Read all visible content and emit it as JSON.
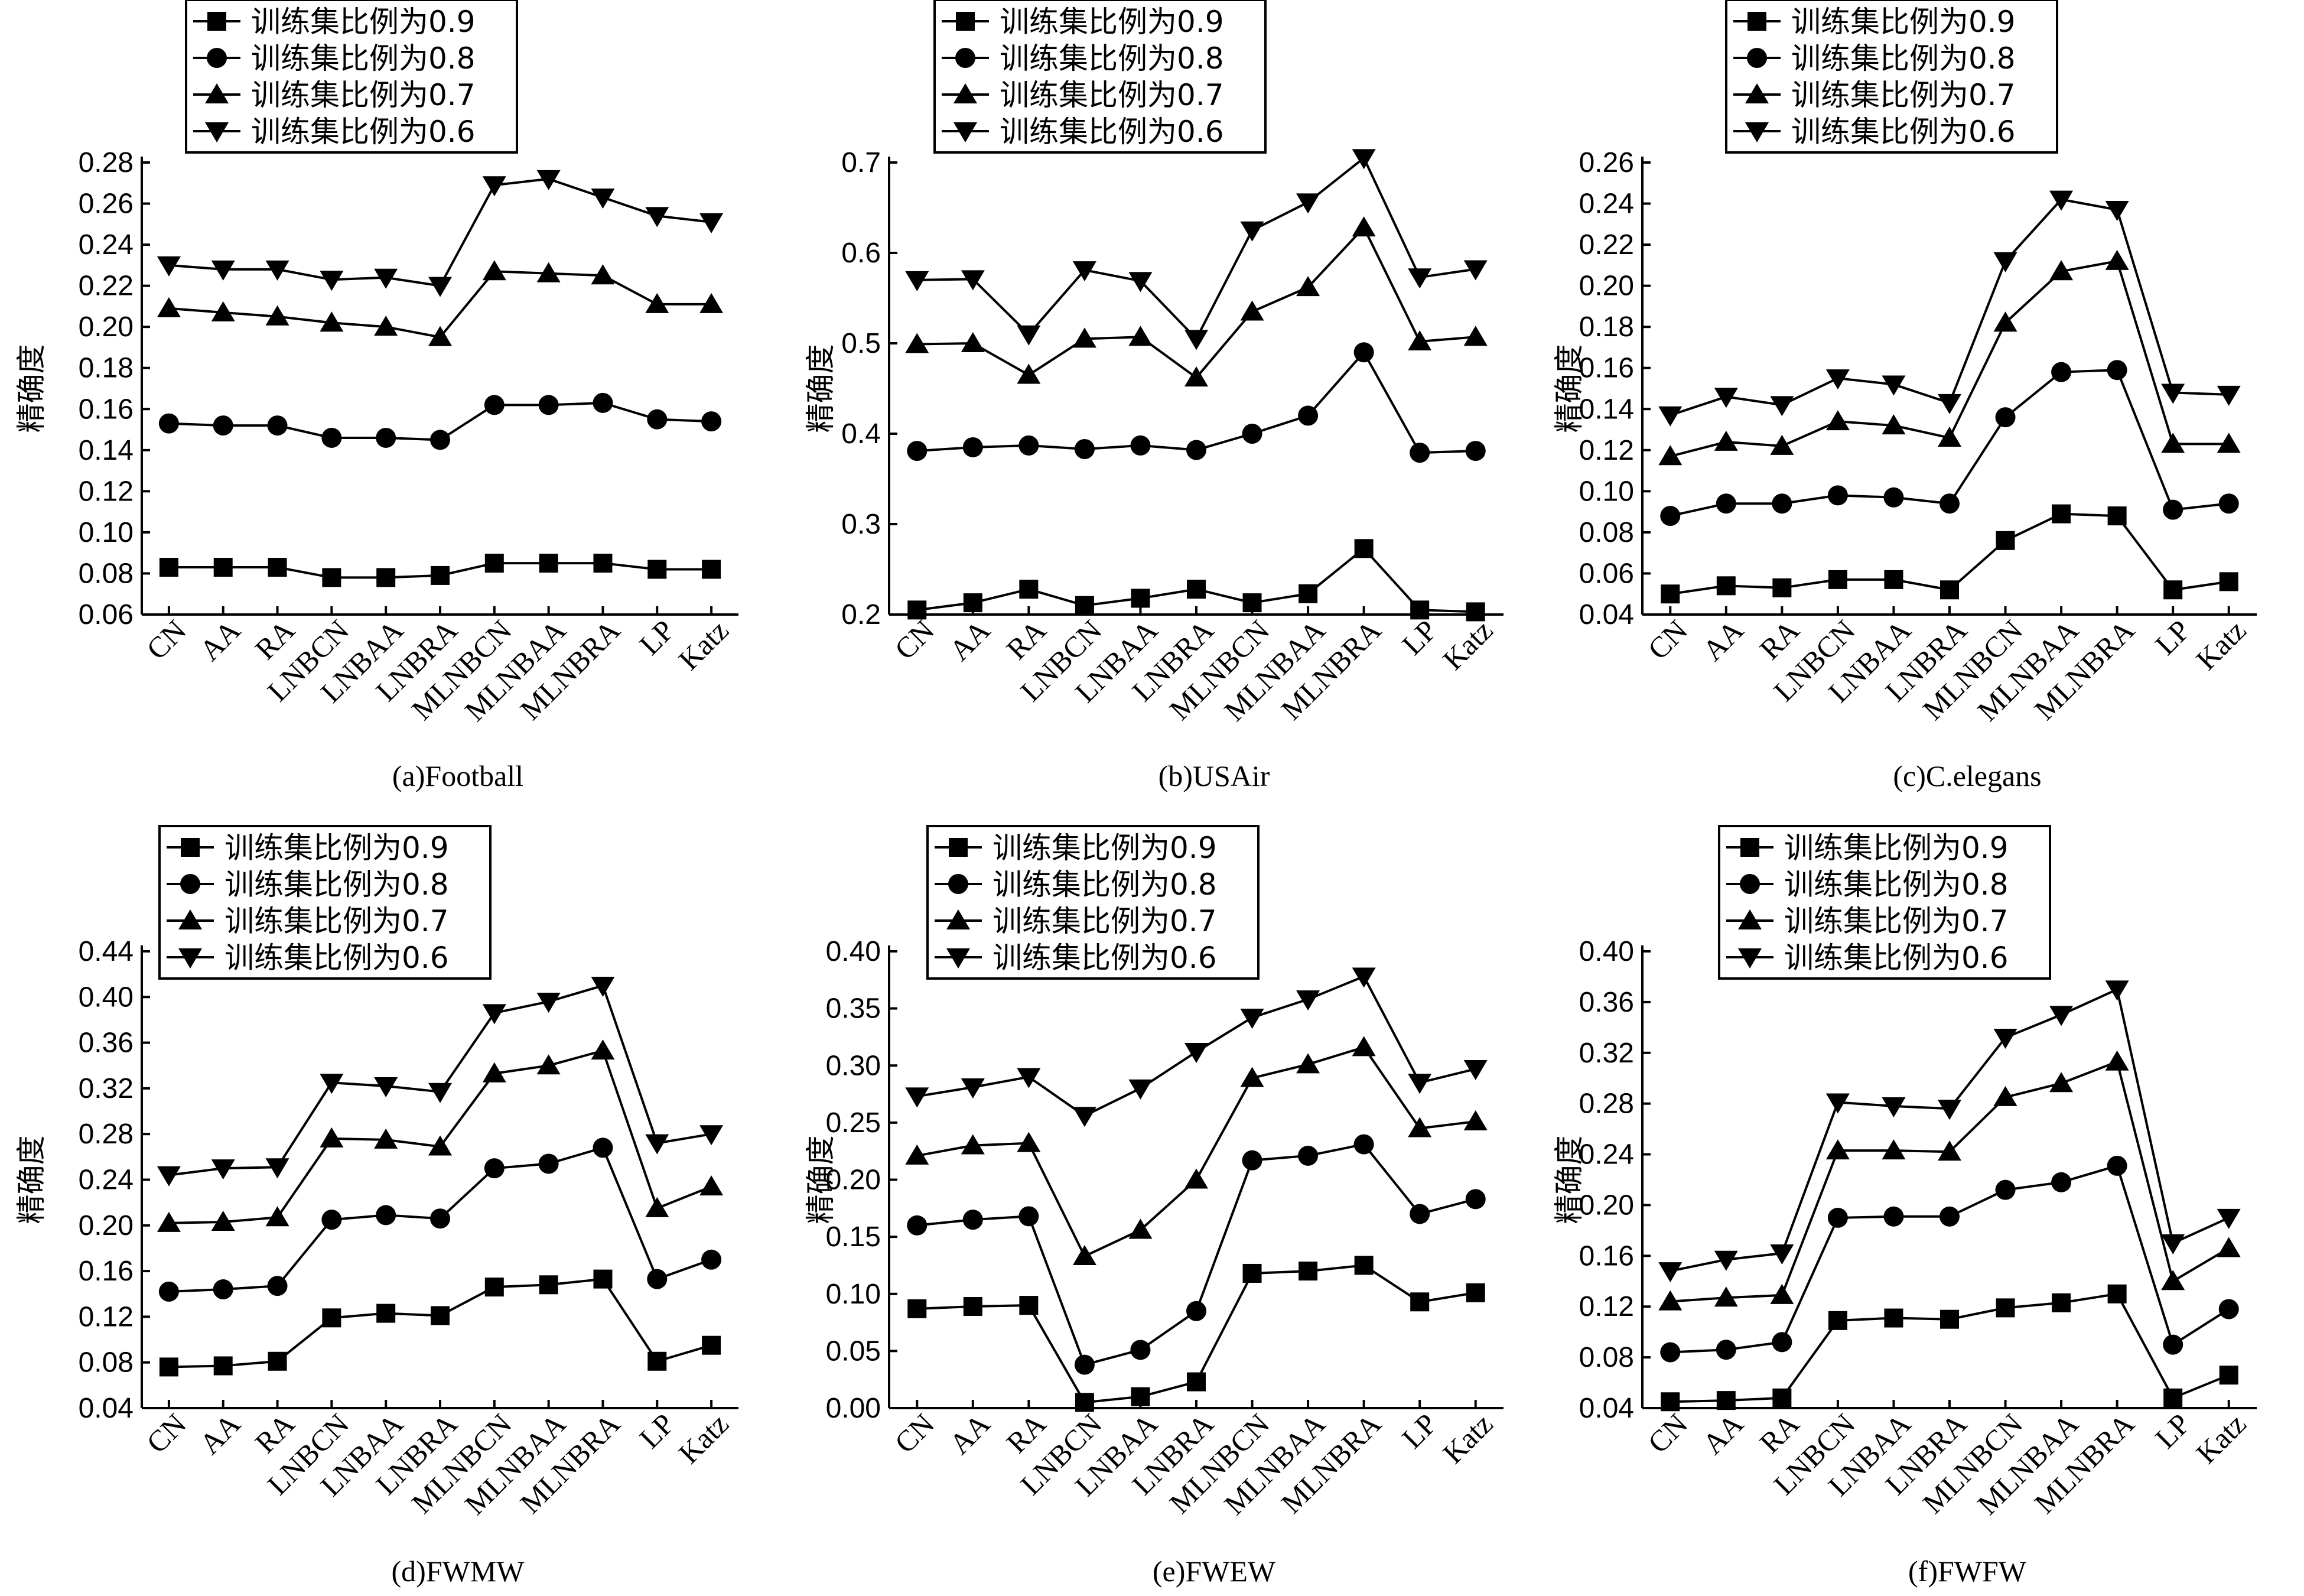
{
  "chart_data": [
    {
      "type": "line",
      "caption": "(a)Football",
      "ylabel": "精确度",
      "categories": [
        "CN",
        "AA",
        "RA",
        "LNBCN",
        "LNBAA",
        "LNBRA",
        "MLNBCN",
        "MLNBAA",
        "MLNBRA",
        "LP",
        "Katz"
      ],
      "ylim": [
        0.06,
        0.28
      ],
      "yticks": [
        "0.06",
        "0.08",
        "0.10",
        "0.12",
        "0.14",
        "0.16",
        "0.18",
        "0.20",
        "0.22",
        "0.24",
        "0.26",
        "0.28"
      ],
      "series": [
        {
          "name": "训练集比例为0.9",
          "marker": "square",
          "values": [
            0.083,
            0.083,
            0.083,
            0.078,
            0.078,
            0.079,
            0.085,
            0.085,
            0.085,
            0.082,
            0.082
          ]
        },
        {
          "name": "训练集比例为0.8",
          "marker": "circle",
          "values": [
            0.153,
            0.152,
            0.152,
            0.146,
            0.146,
            0.145,
            0.162,
            0.162,
            0.163,
            0.155,
            0.154
          ]
        },
        {
          "name": "训练集比例为0.7",
          "marker": "triangle-up",
          "values": [
            0.209,
            0.207,
            0.205,
            0.202,
            0.2,
            0.195,
            0.227,
            0.226,
            0.225,
            0.211,
            0.211
          ]
        },
        {
          "name": "训练集比例为0.6",
          "marker": "triangle-down",
          "values": [
            0.23,
            0.228,
            0.228,
            0.223,
            0.224,
            0.22,
            0.269,
            0.272,
            0.263,
            0.254,
            0.251
          ]
        }
      ]
    },
    {
      "type": "line",
      "caption": "(b)USAir",
      "ylabel": "精确度",
      "categories": [
        "CN",
        "AA",
        "RA",
        "LNBCN",
        "LNBAA",
        "LNBRA",
        "MLNBCN",
        "MLNBAA",
        "MLNBRA",
        "LP",
        "Katz"
      ],
      "ylim": [
        0.2,
        0.7
      ],
      "yticks": [
        "0.2",
        "0.3",
        "0.4",
        "0.5",
        "0.6",
        "0.7"
      ],
      "series": [
        {
          "name": "训练集比例为0.9",
          "marker": "square",
          "values": [
            0.205,
            0.213,
            0.228,
            0.21,
            0.218,
            0.228,
            0.213,
            0.223,
            0.273,
            0.205,
            0.203
          ]
        },
        {
          "name": "训练集比例为0.8",
          "marker": "circle",
          "values": [
            0.381,
            0.385,
            0.387,
            0.383,
            0.387,
            0.382,
            0.4,
            0.42,
            0.49,
            0.379,
            0.381
          ]
        },
        {
          "name": "训练集比例为0.7",
          "marker": "triangle-up",
          "values": [
            0.499,
            0.5,
            0.465,
            0.505,
            0.507,
            0.462,
            0.535,
            0.562,
            0.628,
            0.502,
            0.507
          ]
        },
        {
          "name": "训练集比例为0.6",
          "marker": "triangle-down",
          "values": [
            0.57,
            0.571,
            0.51,
            0.581,
            0.569,
            0.505,
            0.625,
            0.656,
            0.705,
            0.573,
            0.582
          ]
        }
      ]
    },
    {
      "type": "line",
      "caption": "(c)C.elegans",
      "ylabel": "精确度",
      "categories": [
        "CN",
        "AA",
        "RA",
        "LNBCN",
        "LNBAA",
        "LNBRA",
        "MLNBCN",
        "MLNBAA",
        "MLNBRA",
        "LP",
        "Katz"
      ],
      "ylim": [
        0.04,
        0.26
      ],
      "yticks": [
        "0.04",
        "0.06",
        "0.08",
        "0.10",
        "0.12",
        "0.14",
        "0.16",
        "0.18",
        "0.20",
        "0.22",
        "0.24",
        "0.26"
      ],
      "series": [
        {
          "name": "训练集比例为0.9",
          "marker": "square",
          "values": [
            0.05,
            0.054,
            0.053,
            0.057,
            0.057,
            0.052,
            0.076,
            0.089,
            0.088,
            0.052,
            0.056
          ]
        },
        {
          "name": "训练集比例为0.8",
          "marker": "circle",
          "values": [
            0.088,
            0.094,
            0.094,
            0.098,
            0.097,
            0.094,
            0.136,
            0.158,
            0.159,
            0.091,
            0.094
          ]
        },
        {
          "name": "训练集比例为0.7",
          "marker": "triangle-up",
          "values": [
            0.117,
            0.124,
            0.122,
            0.134,
            0.132,
            0.126,
            0.182,
            0.207,
            0.212,
            0.123,
            0.123
          ]
        },
        {
          "name": "训练集比例为0.6",
          "marker": "triangle-down",
          "values": [
            0.137,
            0.146,
            0.142,
            0.155,
            0.152,
            0.143,
            0.212,
            0.242,
            0.237,
            0.148,
            0.147
          ]
        }
      ]
    },
    {
      "type": "line",
      "caption": "(d)FWMW",
      "ylabel": "精确度",
      "categories": [
        "CN",
        "AA",
        "RA",
        "LNBCN",
        "LNBAA",
        "LNBRA",
        "MLNBCN",
        "MLNBAA",
        "MLNBRA",
        "LP",
        "Katz"
      ],
      "ylim": [
        0.04,
        0.44
      ],
      "yticks": [
        "0.04",
        "0.08",
        "0.12",
        "0.16",
        "0.20",
        "0.24",
        "0.28",
        "0.32",
        "0.36",
        "0.40",
        "0.44"
      ],
      "series": [
        {
          "name": "训练集比例为0.9",
          "marker": "square",
          "values": [
            0.076,
            0.077,
            0.081,
            0.119,
            0.123,
            0.121,
            0.146,
            0.148,
            0.153,
            0.081,
            0.095
          ]
        },
        {
          "name": "训练集比例为0.8",
          "marker": "circle",
          "values": [
            0.142,
            0.144,
            0.147,
            0.205,
            0.209,
            0.206,
            0.25,
            0.254,
            0.268,
            0.153,
            0.17
          ]
        },
        {
          "name": "训练集比例为0.7",
          "marker": "triangle-up",
          "values": [
            0.202,
            0.203,
            0.207,
            0.276,
            0.275,
            0.269,
            0.333,
            0.34,
            0.353,
            0.215,
            0.234
          ]
        },
        {
          "name": "训练集比例为0.6",
          "marker": "triangle-down",
          "values": [
            0.244,
            0.25,
            0.251,
            0.325,
            0.322,
            0.317,
            0.386,
            0.396,
            0.41,
            0.272,
            0.28
          ]
        }
      ]
    },
    {
      "type": "line",
      "caption": "(e)FWEW",
      "ylabel": "精确度",
      "categories": [
        "CN",
        "AA",
        "RA",
        "LNBCN",
        "LNBAA",
        "LNBRA",
        "MLNBCN",
        "MLNBAA",
        "MLNBRA",
        "LP",
        "Katz"
      ],
      "ylim": [
        0.0,
        0.4
      ],
      "yticks": [
        "0.00",
        "0.05",
        "0.10",
        "0.15",
        "0.20",
        "0.25",
        "0.30",
        "0.35",
        "0.40"
      ],
      "series": [
        {
          "name": "训练集比例为0.9",
          "marker": "square",
          "values": [
            0.087,
            0.089,
            0.09,
            0.005,
            0.01,
            0.023,
            0.118,
            0.12,
            0.125,
            0.093,
            0.101
          ]
        },
        {
          "name": "训练集比例为0.8",
          "marker": "circle",
          "values": [
            0.16,
            0.165,
            0.168,
            0.038,
            0.051,
            0.085,
            0.217,
            0.221,
            0.231,
            0.17,
            0.183
          ]
        },
        {
          "name": "训练集比例为0.7",
          "marker": "triangle-up",
          "values": [
            0.221,
            0.23,
            0.232,
            0.133,
            0.156,
            0.2,
            0.289,
            0.301,
            0.316,
            0.245,
            0.251
          ]
        },
        {
          "name": "训练集比例为0.6",
          "marker": "triangle-down",
          "values": [
            0.273,
            0.281,
            0.29,
            0.256,
            0.28,
            0.312,
            0.342,
            0.358,
            0.378,
            0.285,
            0.297
          ]
        }
      ]
    },
    {
      "type": "line",
      "caption": "(f)FWFW",
      "ylabel": "精确度",
      "categories": [
        "CN",
        "AA",
        "RA",
        "LNBCN",
        "LNBAA",
        "LNBRA",
        "MLNBCN",
        "MLNBAA",
        "MLNBRA",
        "LP",
        "Katz"
      ],
      "ylim": [
        0.04,
        0.4
      ],
      "yticks": [
        "0.04",
        "0.08",
        "0.12",
        "0.16",
        "0.20",
        "0.24",
        "0.28",
        "0.32",
        "0.36",
        "0.40"
      ],
      "series": [
        {
          "name": "训练集比例为0.9",
          "marker": "square",
          "values": [
            0.045,
            0.046,
            0.048,
            0.109,
            0.111,
            0.11,
            0.119,
            0.123,
            0.13,
            0.048,
            0.066
          ]
        },
        {
          "name": "训练集比例为0.8",
          "marker": "circle",
          "values": [
            0.084,
            0.086,
            0.092,
            0.19,
            0.191,
            0.191,
            0.212,
            0.218,
            0.231,
            0.09,
            0.118
          ]
        },
        {
          "name": "训练集比例为0.7",
          "marker": "triangle-up",
          "values": [
            0.124,
            0.127,
            0.129,
            0.243,
            0.243,
            0.242,
            0.285,
            0.296,
            0.313,
            0.14,
            0.166
          ]
        },
        {
          "name": "训练集比例为0.6",
          "marker": "triangle-down",
          "values": [
            0.148,
            0.157,
            0.162,
            0.281,
            0.278,
            0.276,
            0.332,
            0.35,
            0.37,
            0.17,
            0.19
          ]
        }
      ]
    }
  ]
}
